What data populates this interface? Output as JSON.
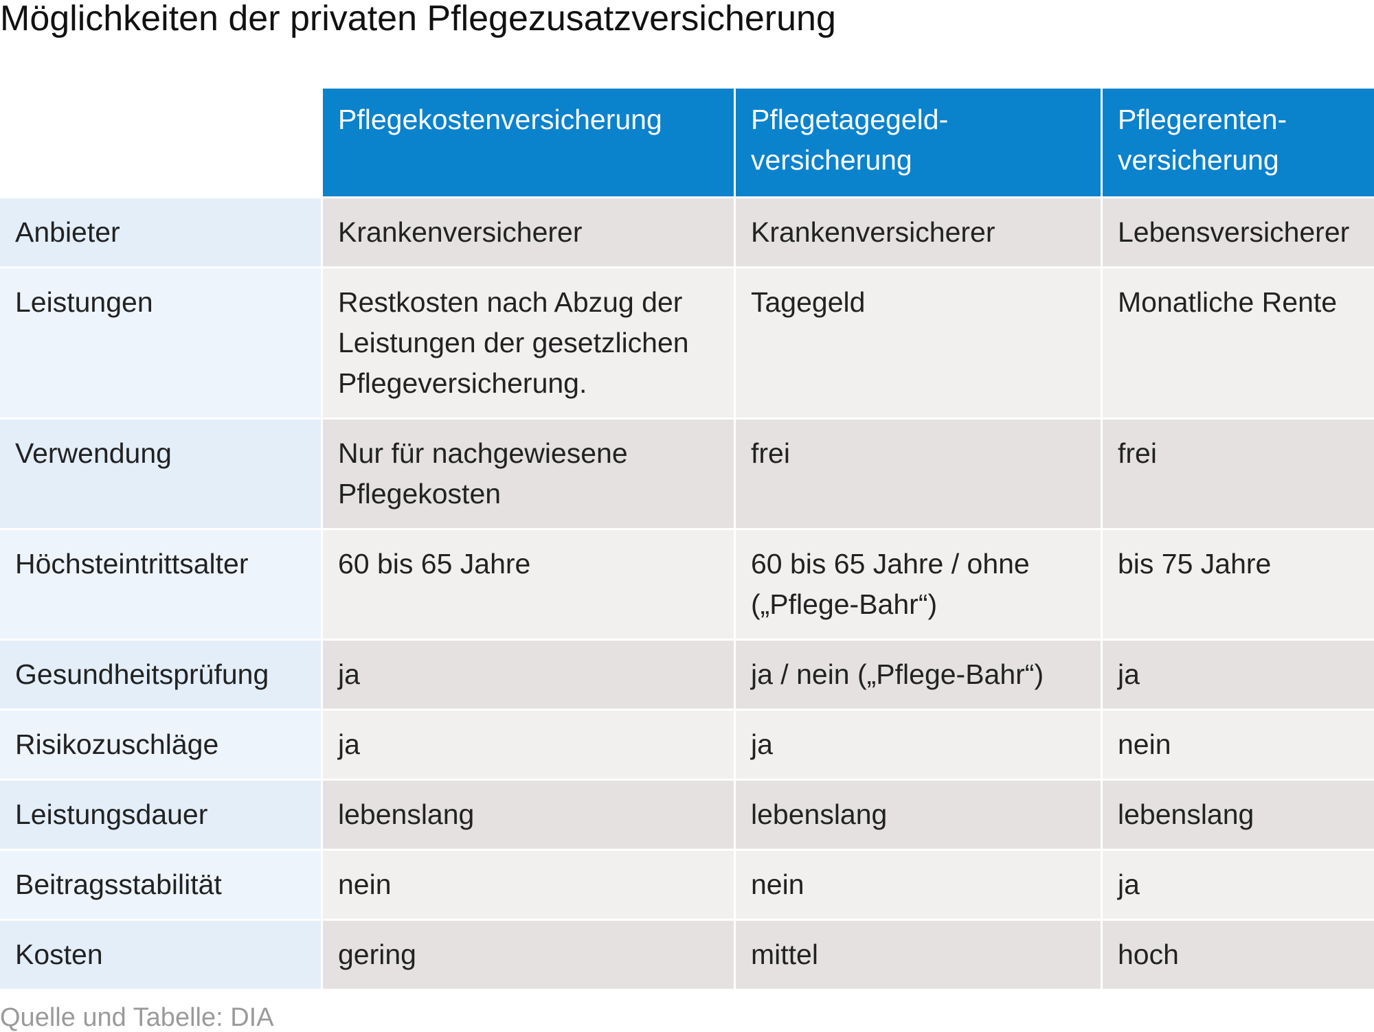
{
  "title": "Möglichkeiten der privaten Pflegezusatzversicherung",
  "table": {
    "headers": [
      "",
      "Pflegekostenversicherung",
      "Pflegetagegeld-\nversicherung",
      "Pflegerenten-\nversicherung"
    ],
    "rows": [
      {
        "label": "Anbieter",
        "cells": [
          "Krankenversicherer",
          "Krankenversicherer",
          "Lebensversicherer"
        ]
      },
      {
        "label": "Leistungen",
        "cells": [
          "Restkosten nach Abzug der Leistungen der gesetzlichen Pflegeversicherung.",
          "Tagegeld",
          "Monatliche Rente"
        ]
      },
      {
        "label": "Verwendung",
        "cells": [
          "Nur für nachgewiesene Pflegekosten",
          "frei",
          "frei"
        ]
      },
      {
        "label": "Höchsteintrittsalter",
        "cells": [
          "60 bis 65 Jahre",
          "60 bis 65 Jahre / ohne („Pflege-Bahr“)",
          "bis 75 Jahre"
        ]
      },
      {
        "label": "Gesundheitsprüfung",
        "cells": [
          "ja",
          "ja / nein („Pflege-Bahr“)",
          "ja"
        ]
      },
      {
        "label": "Risikozuschläge",
        "cells": [
          "ja",
          "ja",
          "nein"
        ]
      },
      {
        "label": "Leistungsdauer",
        "cells": [
          "lebenslang",
          "lebenslang",
          "lebenslang"
        ]
      },
      {
        "label": "Beitragsstabilität",
        "cells": [
          "nein",
          "nein",
          "ja"
        ]
      },
      {
        "label": "Kosten",
        "cells": [
          "gering",
          "mittel",
          "hoch"
        ]
      }
    ]
  },
  "source": "Quelle und Tabelle: DIA",
  "colors": {
    "header_bg": "#0a82cc",
    "label_bg_odd": "#e3eef9",
    "label_bg_even": "#eef4fc",
    "cell_bg_odd": "#e4e1e0",
    "cell_bg_even": "#f2f0ef"
  }
}
